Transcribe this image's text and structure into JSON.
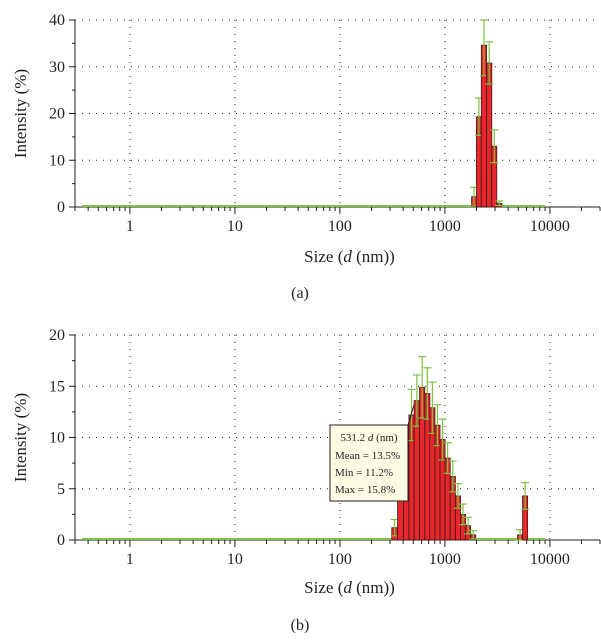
{
  "colors": {
    "bar_fill": "#e8262b",
    "bar_stroke": "#3a1a14",
    "error_bar": "#7dc242",
    "baseline": "#7dc242",
    "grid": "#231f20",
    "annotation_bg": "#fdfbe4"
  },
  "chart_data": [
    {
      "type": "bar",
      "panel_label": "(a)",
      "xlabel": "Size",
      "xlabel_symbol": "d",
      "xlabel_unit": "(nm)",
      "ylabel": "Intensity (%)",
      "x_scale": "log",
      "xlim": [
        0.3,
        30000
      ],
      "ylim": [
        0,
        40
      ],
      "x_ticks": [
        1,
        10,
        100,
        1000,
        10000
      ],
      "x_tick_labels": [
        "1",
        "10",
        "100",
        "1000",
        "10000"
      ],
      "y_ticks": [
        0,
        10,
        20,
        30,
        40
      ],
      "y_tick_labels": [
        "0",
        "10",
        "20",
        "30",
        "40"
      ],
      "grid": "dotted",
      "bins": [
        {
          "x": 1900,
          "value": 2.2,
          "error": 2.0
        },
        {
          "x": 2100,
          "value": 19.3,
          "error": 4.0
        },
        {
          "x": 2350,
          "value": 34.6,
          "error": 6.5
        },
        {
          "x": 2650,
          "value": 30.8,
          "error": 4.5
        },
        {
          "x": 2950,
          "value": 13.0,
          "error": 3.5
        },
        {
          "x": 3300,
          "value": 0.8,
          "error": 0.5
        }
      ],
      "baseline_range": [
        0.35,
        9000
      ]
    },
    {
      "type": "bar",
      "panel_label": "(b)",
      "xlabel": "Size",
      "xlabel_symbol": "d",
      "xlabel_unit": "(nm)",
      "ylabel": "Intensity (%)",
      "x_scale": "log",
      "xlim": [
        0.3,
        30000
      ],
      "ylim": [
        0,
        20
      ],
      "x_ticks": [
        1,
        10,
        100,
        1000,
        10000
      ],
      "x_tick_labels": [
        "1",
        "10",
        "100",
        "1000",
        "10000"
      ],
      "y_ticks": [
        0,
        5,
        10,
        15,
        20
      ],
      "y_tick_labels": [
        "0",
        "5",
        "10",
        "15",
        "20"
      ],
      "grid": "dotted",
      "bins": [
        {
          "x": 330,
          "value": 1.2,
          "error": 0.8
        },
        {
          "x": 380,
          "value": 5.3,
          "error": 1.5
        },
        {
          "x": 430,
          "value": 9.2,
          "error": 2.0
        },
        {
          "x": 480,
          "value": 12.2,
          "error": 2.5
        },
        {
          "x": 540,
          "value": 13.6,
          "error": 2.5
        },
        {
          "x": 610,
          "value": 14.9,
          "error": 3.0
        },
        {
          "x": 680,
          "value": 14.3,
          "error": 2.5
        },
        {
          "x": 760,
          "value": 12.9,
          "error": 2.5
        },
        {
          "x": 850,
          "value": 11.2,
          "error": 2.0
        },
        {
          "x": 950,
          "value": 9.8,
          "error": 2.0
        },
        {
          "x": 1060,
          "value": 8.0,
          "error": 1.5
        },
        {
          "x": 1190,
          "value": 6.2,
          "error": 1.5
        },
        {
          "x": 1330,
          "value": 4.3,
          "error": 1.2
        },
        {
          "x": 1490,
          "value": 2.5,
          "error": 1.0
        },
        {
          "x": 1660,
          "value": 1.4,
          "error": 0.8
        },
        {
          "x": 1860,
          "value": 0.5,
          "error": 0.4
        },
        {
          "x": 5200,
          "value": 0.5,
          "error": 0.5
        },
        {
          "x": 5800,
          "value": 4.3,
          "error": 1.3
        }
      ],
      "baseline_range": [
        0.35,
        9000
      ],
      "annotation": {
        "value": "531.2",
        "symbol": "d",
        "unit": "(nm)",
        "lines": [
          "Mean = 13.5%",
          "Min = 11.2%",
          "Max = 15.8%"
        ],
        "target_x": 531.2
      }
    }
  ]
}
